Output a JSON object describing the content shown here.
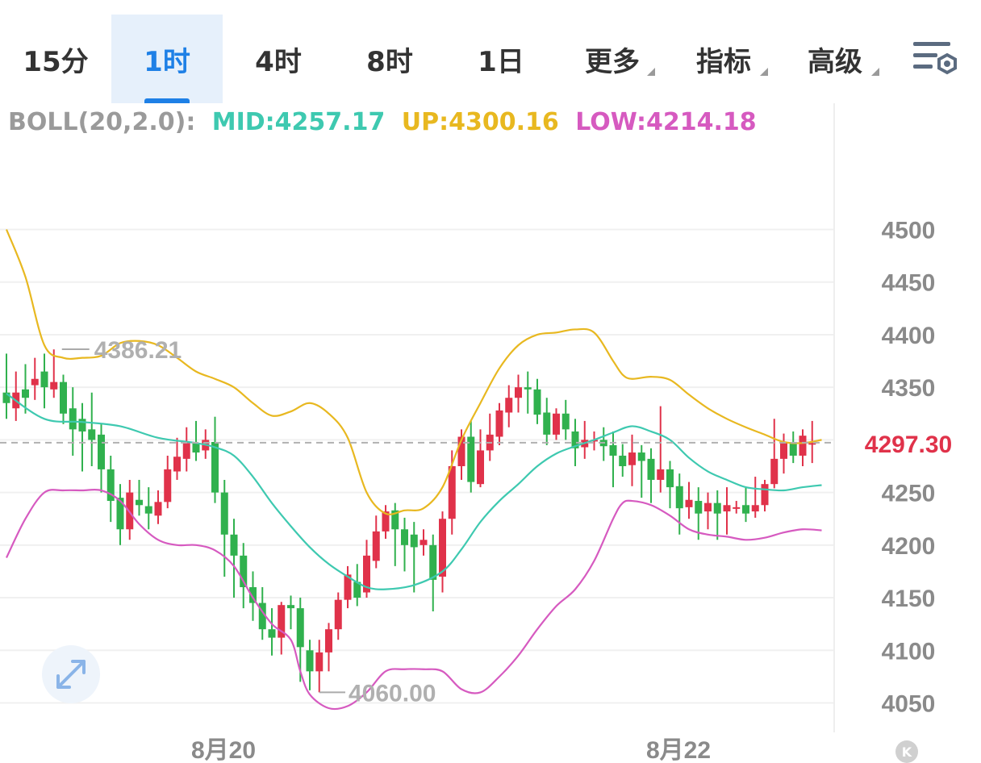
{
  "tabs": [
    {
      "label": "15分",
      "active": false
    },
    {
      "label": "1时",
      "active": true
    },
    {
      "label": "4时",
      "active": false
    },
    {
      "label": "8时",
      "active": false
    },
    {
      "label": "1日",
      "active": false
    },
    {
      "label": "更多",
      "active": false,
      "dropdown": true
    },
    {
      "label": "指标",
      "active": false,
      "dropdown": true
    },
    {
      "label": "高级",
      "active": false,
      "dropdown": true
    }
  ],
  "settings_icon": "chart-settings-icon",
  "expand_icon": "expand-arrows-icon",
  "k_badge": "K",
  "colors": {
    "up": "#e0324a",
    "down": "#30b14e",
    "mid": "#3ec9b0",
    "upper": "#e8b820",
    "lower": "#d65ac0",
    "accent": "#1e80e6",
    "axis": "#8a8a8a",
    "price_label": "#e0324a"
  },
  "chart_data": {
    "type": "candlestick",
    "indicator": {
      "name": "BOLL(20,2.0):",
      "mid": "MID:4257.17",
      "up": "UP:4300.16",
      "low": "LOW:4214.18"
    },
    "y_ticks": [
      4500,
      4450,
      4400,
      4350,
      4300,
      4250,
      4200,
      4150,
      4100,
      4050
    ],
    "y_tick_labels": [
      "4500",
      "4450",
      "4400",
      "4350",
      "4250",
      "4200",
      "4150",
      "4100",
      "4050"
    ],
    "ylim": [
      4022,
      4620
    ],
    "x_labels": [
      {
        "text": "8月20",
        "index": 20
      },
      {
        "text": "8月22",
        "index": 68
      }
    ],
    "last_price": 4297.3,
    "last_price_label": "4297.30",
    "high_marker": {
      "text": "4386.21",
      "value": 4386.21,
      "index": 5
    },
    "low_marker": {
      "text": "4060.00",
      "value": 4060.0,
      "index": 32
    },
    "candles": [
      [
        4345,
        4335,
        4382,
        4320
      ],
      [
        4330,
        4345,
        4365,
        4318
      ],
      [
        4348,
        4340,
        4372,
        4325
      ],
      [
        4352,
        4358,
        4378,
        4338
      ],
      [
        4365,
        4350,
        4382,
        4330
      ],
      [
        4348,
        4355,
        4386,
        4340
      ],
      [
        4355,
        4325,
        4362,
        4315
      ],
      [
        4330,
        4310,
        4350,
        4285
      ],
      [
        4320,
        4308,
        4335,
        4270
      ],
      [
        4310,
        4300,
        4345,
        4275
      ],
      [
        4305,
        4272,
        4315,
        4250
      ],
      [
        4272,
        4242,
        4285,
        4222
      ],
      [
        4245,
        4215,
        4258,
        4200
      ],
      [
        4215,
        4250,
        4262,
        4205
      ],
      [
        4243,
        4238,
        4262,
        4228
      ],
      [
        4237,
        4230,
        4255,
        4215
      ],
      [
        4228,
        4241,
        4252,
        4220
      ],
      [
        4241,
        4272,
        4285,
        4235
      ],
      [
        4270,
        4284,
        4302,
        4262
      ],
      [
        4282,
        4297,
        4312,
        4270
      ],
      [
        4297,
        4288,
        4318,
        4280
      ],
      [
        4290,
        4300,
        4310,
        4282
      ],
      [
        4298,
        4250,
        4322,
        4240
      ],
      [
        4250,
        4210,
        4262,
        4170
      ],
      [
        4210,
        4190,
        4225,
        4150
      ],
      [
        4190,
        4160,
        4202,
        4140
      ],
      [
        4160,
        4145,
        4175,
        4128
      ],
      [
        4145,
        4120,
        4160,
        4110
      ],
      [
        4120,
        4112,
        4140,
        4095
      ],
      [
        4112,
        4143,
        4146,
        4096
      ],
      [
        4143,
        4140,
        4152,
        4120
      ],
      [
        4140,
        4103,
        4150,
        4070
      ],
      [
        4100,
        4080,
        4110,
        4062
      ],
      [
        4080,
        4098,
        4110,
        4060
      ],
      [
        4098,
        4120,
        4126,
        4080
      ],
      [
        4120,
        4148,
        4155,
        4110
      ],
      [
        4148,
        4172,
        4180,
        4140
      ],
      [
        4165,
        4150,
        4182,
        4142
      ],
      [
        4155,
        4190,
        4205,
        4150
      ],
      [
        4185,
        4213,
        4228,
        4178
      ],
      [
        4213,
        4232,
        4238,
        4206
      ],
      [
        4233,
        4215,
        4240,
        4180
      ],
      [
        4215,
        4200,
        4226,
        4175
      ],
      [
        4210,
        4198,
        4222,
        4155
      ],
      [
        4200,
        4205,
        4215,
        4190
      ],
      [
        4200,
        4167,
        4210,
        4137
      ],
      [
        4170,
        4225,
        4232,
        4155
      ],
      [
        4225,
        4275,
        4290,
        4210
      ],
      [
        4275,
        4303,
        4310,
        4262
      ],
      [
        4303,
        4260,
        4318,
        4250
      ],
      [
        4258,
        4290,
        4310,
        4255
      ],
      [
        4290,
        4305,
        4325,
        4280
      ],
      [
        4303,
        4328,
        4335,
        4295
      ],
      [
        4326,
        4340,
        4352,
        4312
      ],
      [
        4340,
        4350,
        4362,
        4326
      ],
      [
        4350,
        4348,
        4365,
        4325
      ],
      [
        4348,
        4324,
        4358,
        4315
      ],
      [
        4326,
        4305,
        4340,
        4295
      ],
      [
        4305,
        4325,
        4330,
        4300
      ],
      [
        4325,
        4310,
        4338,
        4300
      ],
      [
        4308,
        4292,
        4320,
        4275
      ],
      [
        4293,
        4300,
        4318,
        4282
      ],
      [
        4299,
        4300,
        4308,
        4290
      ],
      [
        4300,
        4294,
        4312,
        4280
      ],
      [
        4295,
        4285,
        4308,
        4255
      ],
      [
        4285,
        4275,
        4296,
        4265
      ],
      [
        4276,
        4288,
        4305,
        4256
      ],
      [
        4288,
        4280,
        4295,
        4245
      ],
      [
        4282,
        4262,
        4292,
        4240
      ],
      [
        4262,
        4272,
        4332,
        4250
      ],
      [
        4272,
        4255,
        4280,
        4235
      ],
      [
        4256,
        4235,
        4268,
        4210
      ],
      [
        4236,
        4243,
        4260,
        4225
      ],
      [
        4242,
        4230,
        4255,
        4205
      ],
      [
        4232,
        4240,
        4250,
        4215
      ],
      [
        4240,
        4230,
        4252,
        4205
      ],
      [
        4232,
        4238,
        4255,
        4210
      ],
      [
        4236,
        4236,
        4242,
        4230
      ],
      [
        4238,
        4230,
        4255,
        4222
      ],
      [
        4232,
        4238,
        4265,
        4226
      ],
      [
        4238,
        4258,
        4262,
        4232
      ],
      [
        4258,
        4282,
        4320,
        4254
      ],
      [
        4282,
        4298,
        4306,
        4268
      ],
      [
        4298,
        4285,
        4308,
        4278
      ],
      [
        4285,
        4304,
        4310,
        4275
      ],
      [
        4296,
        4297,
        4318,
        4278
      ]
    ],
    "mid_line": [
      [
        0,
        4344
      ],
      [
        4,
        4320
      ],
      [
        8,
        4317
      ],
      [
        12,
        4313
      ],
      [
        16,
        4302
      ],
      [
        20,
        4297
      ],
      [
        22,
        4293
      ],
      [
        24,
        4285
      ],
      [
        26,
        4265
      ],
      [
        28,
        4240
      ],
      [
        30,
        4218
      ],
      [
        32,
        4198
      ],
      [
        34,
        4182
      ],
      [
        36,
        4170
      ],
      [
        38,
        4160
      ],
      [
        40,
        4158
      ],
      [
        43,
        4162
      ],
      [
        46,
        4175
      ],
      [
        48,
        4196
      ],
      [
        50,
        4222
      ],
      [
        52,
        4242
      ],
      [
        54,
        4258
      ],
      [
        56,
        4275
      ],
      [
        58,
        4287
      ],
      [
        60,
        4294
      ],
      [
        62,
        4300
      ],
      [
        64,
        4307
      ],
      [
        66,
        4313
      ],
      [
        68,
        4308
      ],
      [
        70,
        4300
      ],
      [
        72,
        4283
      ],
      [
        74,
        4270
      ],
      [
        76,
        4262
      ],
      [
        78,
        4255
      ],
      [
        80,
        4253
      ],
      [
        82,
        4252
      ],
      [
        84,
        4255
      ],
      [
        86,
        4257
      ]
    ],
    "upper_line": [
      [
        0,
        4500
      ],
      [
        2,
        4455
      ],
      [
        4,
        4390
      ],
      [
        6,
        4378
      ],
      [
        8,
        4378
      ],
      [
        10,
        4380
      ],
      [
        12,
        4392
      ],
      [
        14,
        4394
      ],
      [
        16,
        4390
      ],
      [
        18,
        4378
      ],
      [
        20,
        4365
      ],
      [
        22,
        4358
      ],
      [
        24,
        4350
      ],
      [
        26,
        4335
      ],
      [
        28,
        4323
      ],
      [
        30,
        4327
      ],
      [
        32,
        4335
      ],
      [
        34,
        4325
      ],
      [
        36,
        4302
      ],
      [
        38,
        4250
      ],
      [
        40,
        4230
      ],
      [
        42,
        4233
      ],
      [
        44,
        4235
      ],
      [
        46,
        4255
      ],
      [
        48,
        4300
      ],
      [
        50,
        4335
      ],
      [
        52,
        4368
      ],
      [
        54,
        4390
      ],
      [
        56,
        4400
      ],
      [
        58,
        4402
      ],
      [
        60,
        4405
      ],
      [
        62,
        4402
      ],
      [
        64,
        4375
      ],
      [
        65,
        4362
      ],
      [
        66,
        4358
      ],
      [
        68,
        4360
      ],
      [
        70,
        4357
      ],
      [
        72,
        4343
      ],
      [
        74,
        4330
      ],
      [
        76,
        4320
      ],
      [
        78,
        4312
      ],
      [
        80,
        4305
      ],
      [
        82,
        4298
      ],
      [
        84,
        4297
      ],
      [
        86,
        4300
      ]
    ],
    "lower_line": [
      [
        0,
        4188
      ],
      [
        2,
        4225
      ],
      [
        4,
        4250
      ],
      [
        6,
        4252
      ],
      [
        8,
        4252
      ],
      [
        10,
        4252
      ],
      [
        12,
        4242
      ],
      [
        14,
        4220
      ],
      [
        16,
        4205
      ],
      [
        18,
        4200
      ],
      [
        20,
        4200
      ],
      [
        22,
        4195
      ],
      [
        24,
        4180
      ],
      [
        26,
        4150
      ],
      [
        28,
        4125
      ],
      [
        30,
        4110
      ],
      [
        31,
        4080
      ],
      [
        32,
        4058
      ],
      [
        34,
        4045
      ],
      [
        36,
        4047
      ],
      [
        38,
        4060
      ],
      [
        40,
        4080
      ],
      [
        42,
        4082
      ],
      [
        44,
        4082
      ],
      [
        46,
        4080
      ],
      [
        48,
        4063
      ],
      [
        50,
        4060
      ],
      [
        52,
        4075
      ],
      [
        54,
        4095
      ],
      [
        56,
        4120
      ],
      [
        58,
        4142
      ],
      [
        60,
        4158
      ],
      [
        62,
        4185
      ],
      [
        64,
        4225
      ],
      [
        65,
        4240
      ],
      [
        66,
        4242
      ],
      [
        68,
        4238
      ],
      [
        70,
        4228
      ],
      [
        72,
        4215
      ],
      [
        74,
        4210
      ],
      [
        76,
        4208
      ],
      [
        78,
        4205
      ],
      [
        80,
        4207
      ],
      [
        82,
        4212
      ],
      [
        84,
        4215
      ],
      [
        86,
        4214
      ]
    ]
  }
}
